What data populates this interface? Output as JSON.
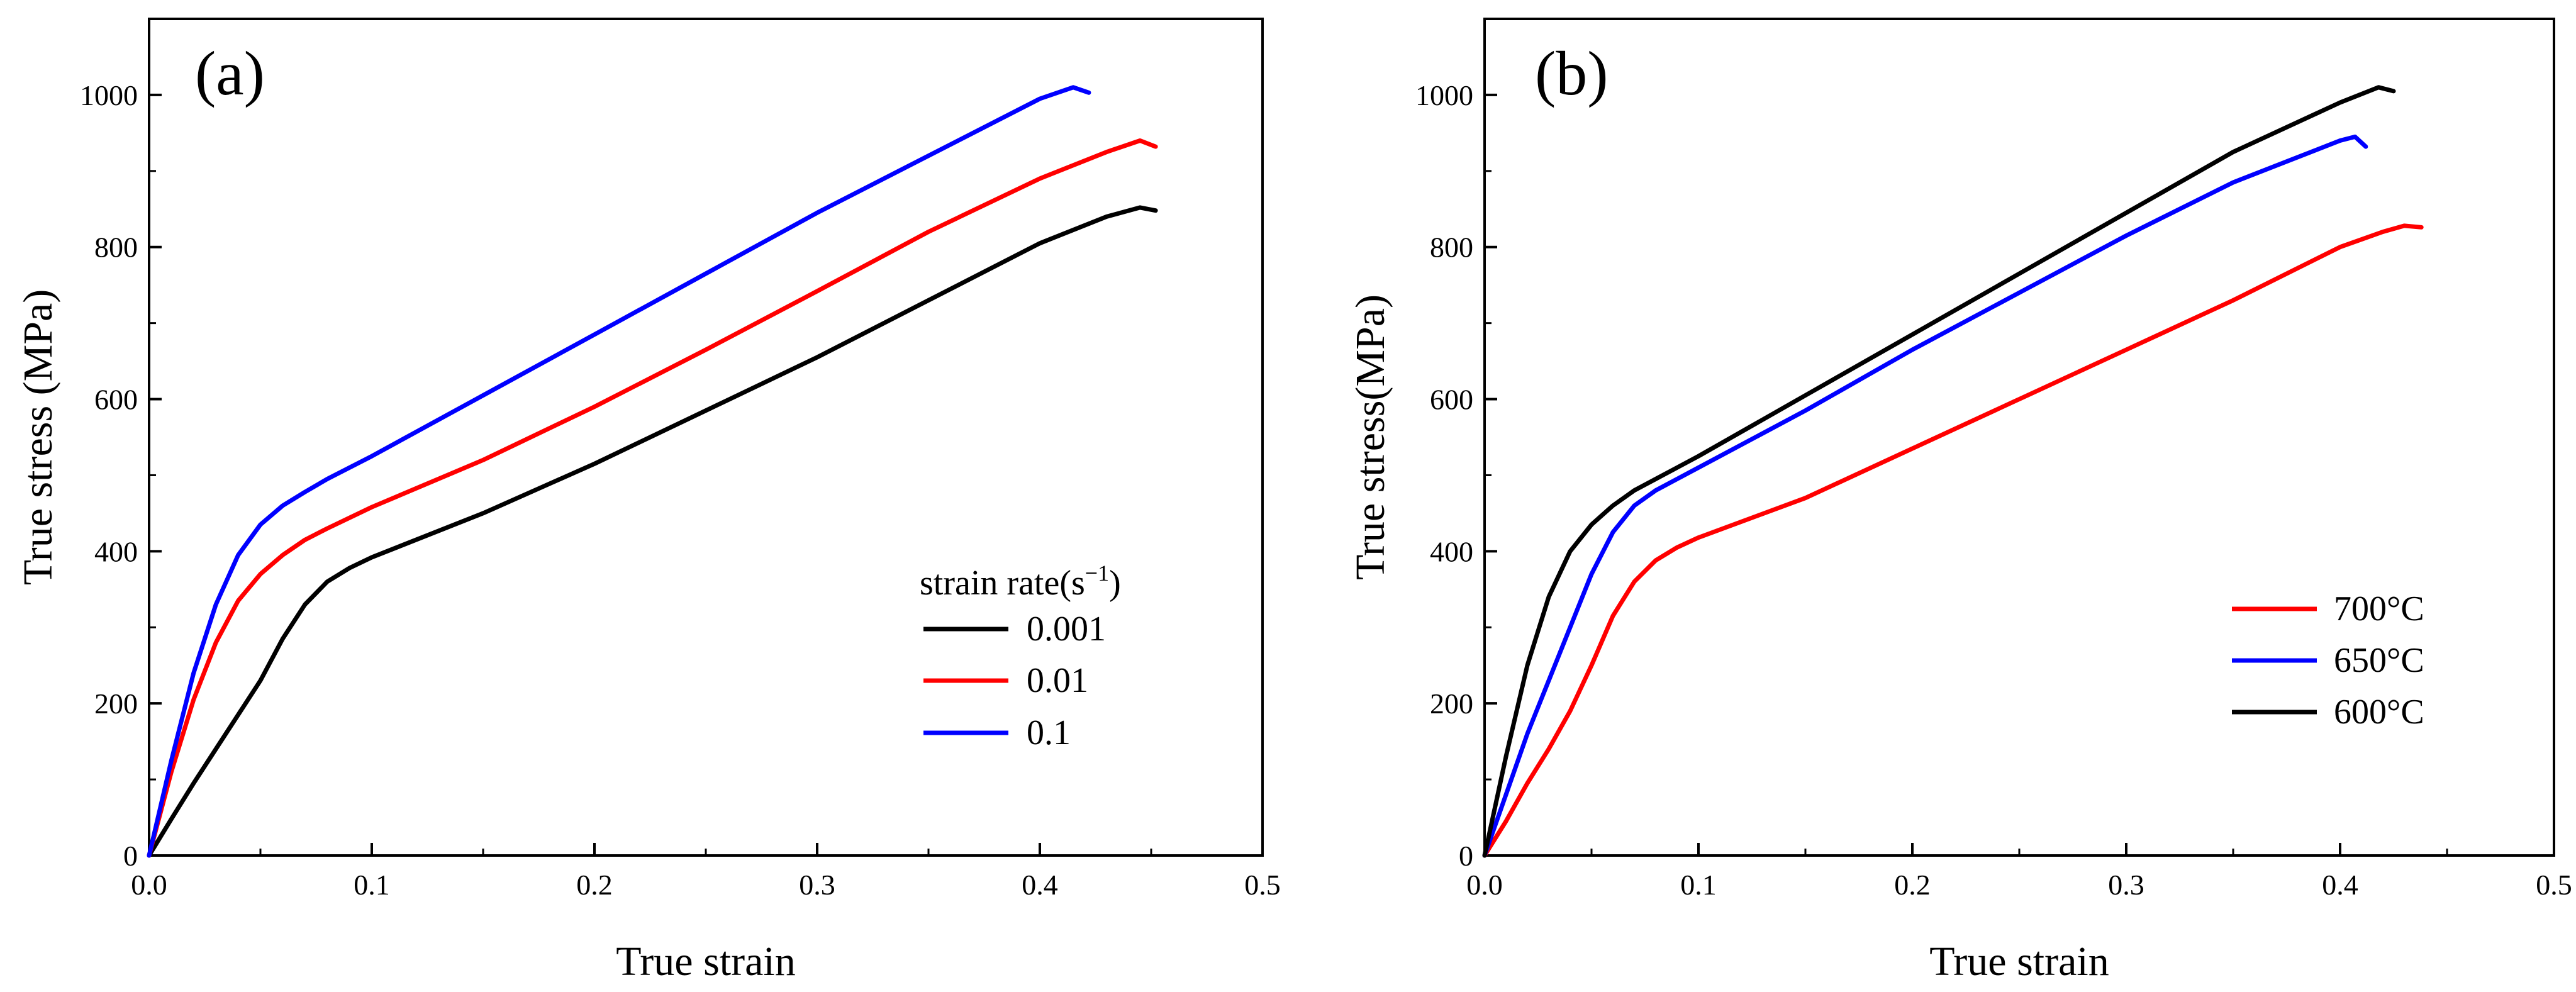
{
  "chart_data": [
    {
      "type": "line",
      "panel_label": "(a)",
      "xlabel": "True strain",
      "ylabel": "True stress (MPa)",
      "xlim": [
        0,
        0.5
      ],
      "ylim": [
        0,
        1100
      ],
      "x_ticks": [
        "0.0",
        "0.1",
        "0.2",
        "0.3",
        "0.4",
        "0.5"
      ],
      "y_ticks": [
        "0",
        "200",
        "400",
        "600",
        "800",
        "1000"
      ],
      "grid": false,
      "legend": {
        "title_main": "strain rate(s",
        "title_sup": "−1",
        "title_end": ")",
        "placement": "center-right"
      },
      "series": [
        {
          "name": "0.001",
          "color": "#000000",
          "x": [
            0,
            0.01,
            0.02,
            0.03,
            0.04,
            0.05,
            0.06,
            0.07,
            0.08,
            0.09,
            0.1,
            0.15,
            0.2,
            0.25,
            0.3,
            0.35,
            0.4,
            0.43,
            0.445,
            0.452
          ],
          "y": [
            0,
            48,
            95,
            140,
            185,
            230,
            285,
            330,
            360,
            378,
            392,
            450,
            515,
            585,
            655,
            730,
            805,
            840,
            852,
            848
          ]
        },
        {
          "name": "0.01",
          "color": "#ff0000",
          "x": [
            0,
            0.01,
            0.02,
            0.03,
            0.04,
            0.05,
            0.06,
            0.07,
            0.08,
            0.1,
            0.15,
            0.2,
            0.25,
            0.3,
            0.35,
            0.4,
            0.43,
            0.445,
            0.452
          ],
          "y": [
            0,
            110,
            205,
            280,
            335,
            370,
            395,
            415,
            430,
            458,
            520,
            590,
            665,
            742,
            820,
            890,
            925,
            940,
            932
          ]
        },
        {
          "name": "0.1",
          "color": "#0000ff",
          "x": [
            0,
            0.01,
            0.02,
            0.03,
            0.04,
            0.05,
            0.06,
            0.07,
            0.08,
            0.1,
            0.15,
            0.2,
            0.25,
            0.3,
            0.35,
            0.4,
            0.415,
            0.422
          ],
          "y": [
            0,
            125,
            240,
            330,
            395,
            435,
            460,
            478,
            495,
            525,
            605,
            685,
            765,
            845,
            920,
            995,
            1010,
            1003
          ]
        }
      ]
    },
    {
      "type": "line",
      "panel_label": "(b)",
      "xlabel": "True strain",
      "ylabel": "True stress(MPa)",
      "xlim": [
        0,
        0.5
      ],
      "ylim": [
        0,
        1100
      ],
      "x_ticks": [
        "0.0",
        "0.1",
        "0.2",
        "0.3",
        "0.4",
        "0.5"
      ],
      "y_ticks": [
        "0",
        "200",
        "400",
        "600",
        "800",
        "1000"
      ],
      "grid": false,
      "legend": {
        "placement": "center-right"
      },
      "series": [
        {
          "name": "700°C",
          "color": "#ff0000",
          "x": [
            0,
            0.01,
            0.02,
            0.03,
            0.04,
            0.05,
            0.06,
            0.07,
            0.08,
            0.09,
            0.1,
            0.15,
            0.2,
            0.25,
            0.3,
            0.35,
            0.4,
            0.42,
            0.43,
            0.438
          ],
          "y": [
            0,
            45,
            95,
            140,
            190,
            250,
            315,
            360,
            388,
            405,
            418,
            470,
            535,
            600,
            665,
            730,
            800,
            820,
            828,
            826
          ]
        },
        {
          "name": "650°C",
          "color": "#0000ff",
          "x": [
            0,
            0.01,
            0.02,
            0.03,
            0.04,
            0.05,
            0.06,
            0.07,
            0.08,
            0.1,
            0.15,
            0.2,
            0.25,
            0.3,
            0.35,
            0.4,
            0.407,
            0.412
          ],
          "y": [
            0,
            80,
            160,
            230,
            300,
            370,
            425,
            460,
            480,
            510,
            585,
            665,
            740,
            815,
            885,
            940,
            945,
            932
          ]
        },
        {
          "name": "600°C",
          "color": "#000000",
          "x": [
            0,
            0.01,
            0.02,
            0.03,
            0.04,
            0.05,
            0.06,
            0.07,
            0.08,
            0.1,
            0.15,
            0.2,
            0.25,
            0.3,
            0.35,
            0.4,
            0.418,
            0.425
          ],
          "y": [
            0,
            130,
            250,
            340,
            400,
            435,
            460,
            480,
            495,
            525,
            605,
            685,
            765,
            845,
            925,
            990,
            1010,
            1005
          ]
        }
      ]
    }
  ]
}
